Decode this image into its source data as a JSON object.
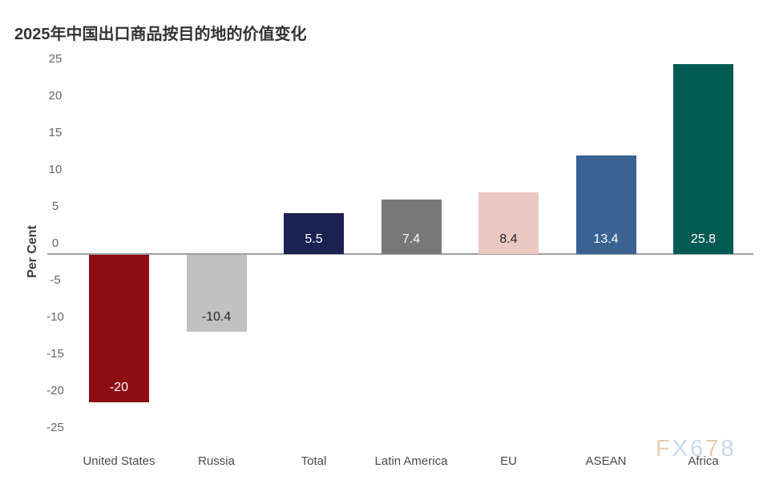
{
  "chart_data": {
    "type": "bar",
    "title": "2025年中国出口商品按目的地的价值变化",
    "ylabel": "Per Cent",
    "xlabel": "",
    "categories": [
      "United States",
      "Russia",
      "Total",
      "Latin America",
      "EU",
      "ASEAN",
      "Africa"
    ],
    "values": [
      -20,
      -10.4,
      5.5,
      7.4,
      8.4,
      13.4,
      25.8
    ],
    "value_labels": [
      "-20",
      "-10.4",
      "5.5",
      "7.4",
      "8.4",
      "13.4",
      "25.8"
    ],
    "bar_colors": [
      "#8C0D12",
      "#C1C1C1",
      "#1B2150",
      "#787878",
      "#ECC8C3",
      "#3A6292",
      "#045B54"
    ],
    "value_label_colors": [
      "#FFFFFF",
      "#262626",
      "#FFFFFF",
      "#FFFFFF",
      "#262626",
      "#FFFFFF",
      "#FFFFFF"
    ],
    "yticks": [
      25,
      20,
      15,
      10,
      5,
      0,
      -5,
      -10,
      -15,
      -20,
      -25
    ],
    "ylim": [
      -25,
      25
    ],
    "grid": false,
    "legend": false,
    "zero_line_color": "#9E9E9E",
    "tick_label_color": "#666666",
    "category_label_color": "#4A4A4A",
    "title_color": "#333333"
  },
  "watermark": {
    "text": "FX678",
    "letters": [
      {
        "char": "F",
        "color": "#E7D2B8"
      },
      {
        "char": "X",
        "color": "#C5D8EE"
      },
      {
        "char": "6",
        "color": "#C9DCF0"
      },
      {
        "char": "7",
        "color": "#E2CBA9"
      },
      {
        "char": "8",
        "color": "#C5D8EE"
      }
    ]
  }
}
